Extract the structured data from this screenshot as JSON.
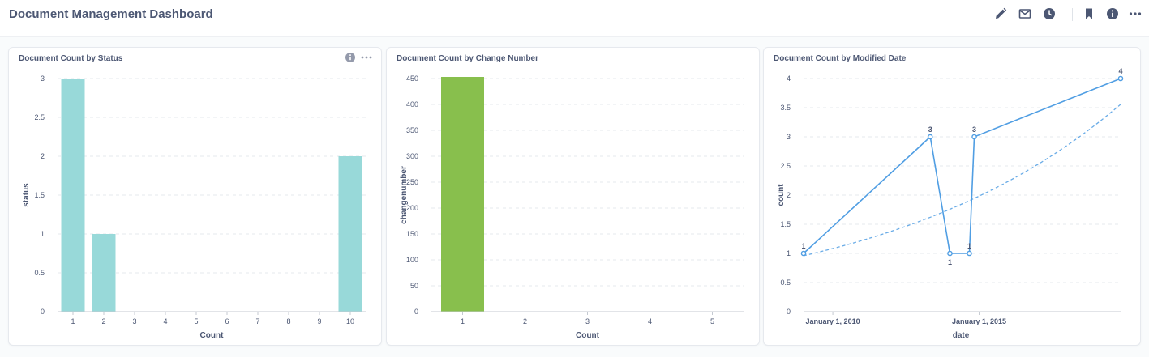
{
  "header": {
    "title": "Document Management Dashboard",
    "toolbar_icons": [
      "pencil-icon",
      "mail-subscribe-icon",
      "clock-icon",
      "bookmark-icon",
      "info-icon",
      "more-icon"
    ]
  },
  "colors": {
    "status_bar": "#98d9d9",
    "change_bar": "#88bf4d",
    "line": "#509ee3",
    "grid": "#e6e9ee",
    "axis_text": "#4c5773"
  },
  "cards": [
    {
      "title": "Document Count by Status",
      "actions": [
        "info-icon",
        "more-icon"
      ]
    },
    {
      "title": "Document Count by Change Number"
    },
    {
      "title": "Document Count by Modified Date"
    }
  ],
  "chart_data": [
    {
      "type": "bar",
      "title": "Document Count by Status",
      "xlabel": "Count",
      "ylabel": "status",
      "categories": [
        "1",
        "2",
        "3",
        "4",
        "5",
        "6",
        "7",
        "8",
        "9",
        "10"
      ],
      "values": [
        3,
        1,
        0,
        0,
        0,
        0,
        0,
        0,
        0,
        2
      ],
      "ylim": [
        0,
        3
      ],
      "yticks": [
        "0",
        "0.5",
        "1",
        "1.5",
        "2",
        "2.5",
        "3"
      ],
      "grid": true
    },
    {
      "type": "bar",
      "title": "Document Count by Change Number",
      "xlabel": "Count",
      "ylabel": "changenumber",
      "categories": [
        "1",
        "2",
        "3",
        "4",
        "5"
      ],
      "values": [
        461,
        0,
        0,
        0,
        0
      ],
      "ylim": [
        0,
        450
      ],
      "yticks": [
        "0",
        "50",
        "100",
        "150",
        "200",
        "250",
        "300",
        "350",
        "400",
        "450"
      ],
      "grid": true
    },
    {
      "type": "line",
      "title": "Document Count by Modified Date",
      "xlabel": "date",
      "ylabel": "count",
      "x": [
        "2009-01-01",
        "2013-05-01",
        "2014-01-01",
        "2014-09-01",
        "2014-11-01",
        "2019-11-01"
      ],
      "values": [
        1,
        3,
        1,
        1,
        3,
        4
      ],
      "point_labels": [
        "1",
        "3",
        "1",
        "1",
        "3",
        "4"
      ],
      "xticks": [
        "January 1, 2010",
        "January 1, 2015"
      ],
      "xlim": [
        "2009-01-01",
        "2019-11-01"
      ],
      "ylim": [
        0,
        4
      ],
      "yticks": [
        "0",
        "0.5",
        "1",
        "1.5",
        "2",
        "2.5",
        "3",
        "3.5",
        "4"
      ],
      "trend": true,
      "grid": true
    }
  ]
}
